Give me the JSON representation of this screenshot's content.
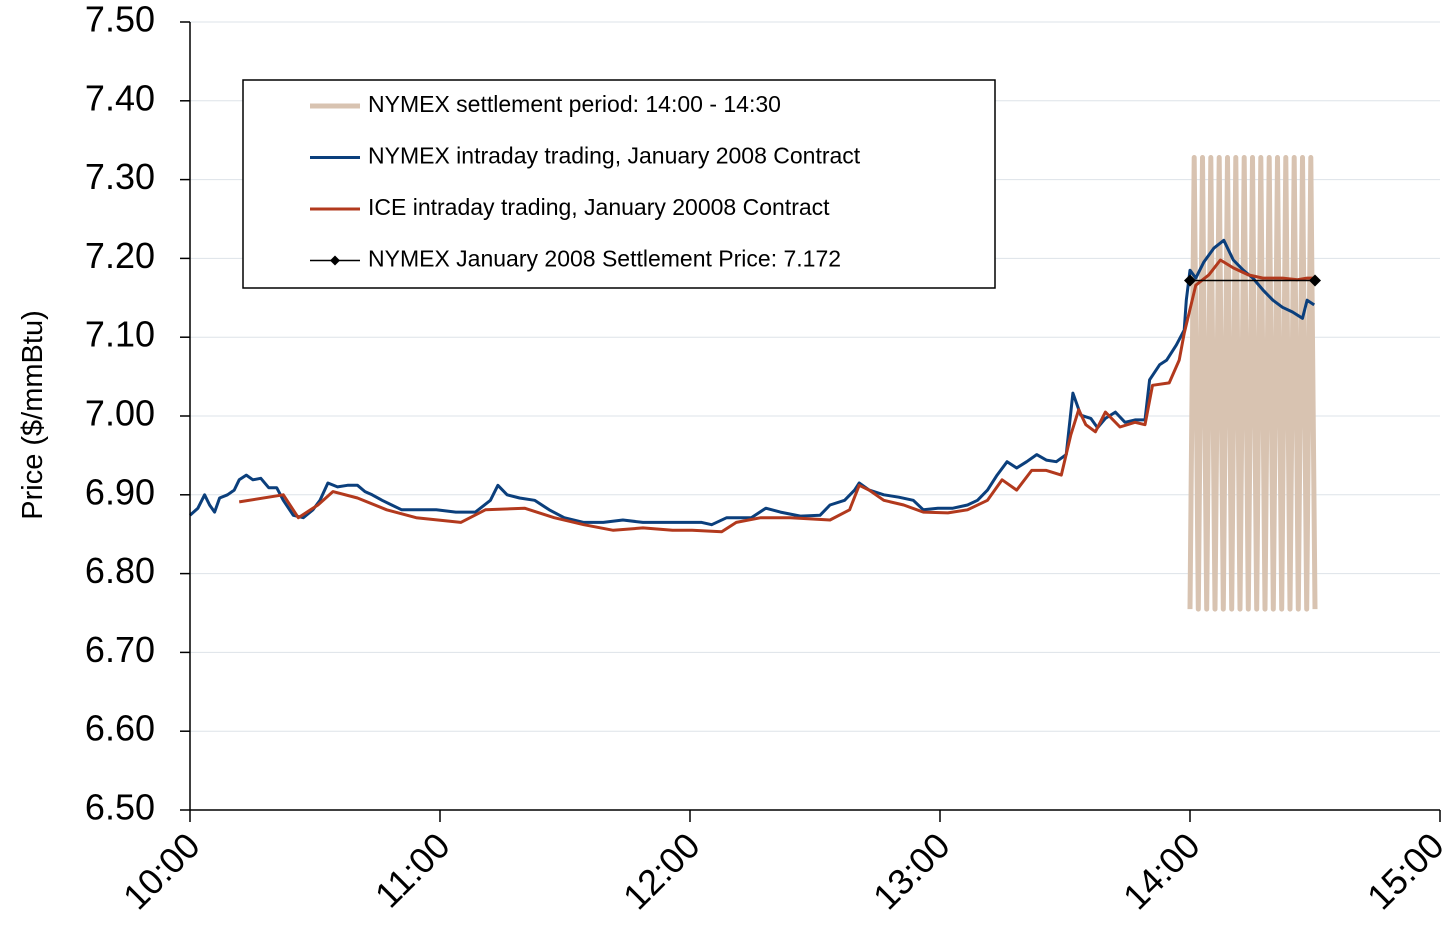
{
  "chart_data": {
    "type": "line",
    "y_label": "Price ($/mmBtu)",
    "xlim": [
      600,
      900
    ],
    "xticks": [
      {
        "value": 600,
        "label": "10:00"
      },
      {
        "value": 660,
        "label": "11:00"
      },
      {
        "value": 720,
        "label": "12:00"
      },
      {
        "value": 780,
        "label": "13:00"
      },
      {
        "value": 840,
        "label": "14:00"
      },
      {
        "value": 900,
        "label": "15:00"
      }
    ],
    "ylim": [
      6.5,
      7.5
    ],
    "yticks": [
      {
        "value": 6.5,
        "label": "6.50"
      },
      {
        "value": 6.6,
        "label": "6.60"
      },
      {
        "value": 6.7,
        "label": "6.70"
      },
      {
        "value": 6.8,
        "label": "6.80"
      },
      {
        "value": 6.9,
        "label": "6.90"
      },
      {
        "value": 7.0,
        "label": "7.00"
      },
      {
        "value": 7.1,
        "label": "7.10"
      },
      {
        "value": 7.2,
        "label": "7.20"
      },
      {
        "value": 7.3,
        "label": "7.30"
      },
      {
        "value": 7.4,
        "label": "7.40"
      },
      {
        "value": 7.5,
        "label": "7.50"
      }
    ],
    "grid": true,
    "series": [
      {
        "name": "NYMEX settlement period: 14:00 - 14:30",
        "color": "#d8c3b1",
        "width": 5,
        "x": [
          840,
          841,
          842,
          843,
          844,
          845,
          846,
          847,
          848,
          849,
          850,
          851,
          852,
          853,
          854,
          855,
          856,
          857,
          858,
          859,
          860,
          861,
          862,
          863,
          864,
          865,
          866,
          867,
          868,
          869,
          870
        ],
        "values": [
          6.755,
          7.328,
          6.755,
          7.328,
          6.755,
          7.328,
          6.755,
          7.328,
          6.755,
          7.328,
          6.755,
          7.328,
          6.755,
          7.328,
          6.755,
          7.328,
          6.755,
          7.328,
          6.755,
          7.328,
          6.755,
          7.328,
          6.755,
          7.328,
          6.755,
          7.328,
          6.755,
          7.328,
          6.755,
          7.328,
          6.755
        ]
      },
      {
        "name": "NYMEX intraday trading, January 2008 Contract",
        "color": "#0b3f7c",
        "width": 3,
        "x": [
          600,
          601.9,
          603.5,
          604.7,
          605.9,
          607.1,
          609,
          610.6,
          611.8,
          613.5,
          615.1,
          617,
          618.9,
          620.8,
          622.4,
          624.8,
          627.2,
          629.5,
          631.2,
          633.1,
          635.4,
          637.8,
          640.2,
          642,
          643.7,
          646.1,
          648.4,
          650.8,
          654.3,
          659.1,
          663.8,
          668.5,
          672.1,
          673.9,
          676.1,
          679.1,
          682.7,
          686.2,
          689.8,
          694.5,
          699.2,
          703.9,
          708.7,
          713.4,
          718.1,
          722.8,
          725.2,
          728.8,
          734.7,
          738.2,
          741.7,
          746.5,
          751.2,
          753.6,
          757.1,
          759.5,
          760.6,
          763,
          766.5,
          770.1,
          773.6,
          776,
          779.5,
          783.1,
          786.6,
          789,
          791.4,
          793.7,
          796.1,
          798.4,
          800.8,
          803.2,
          805.5,
          807.9,
          810.3,
          811.9,
          813.8,
          816.2,
          817.8,
          819.7,
          822.1,
          824.4,
          826.8,
          829.2,
          830.3,
          832.7,
          834.4,
          836.7,
          838.6,
          839.1,
          840,
          841.4,
          843.3,
          845.7,
          848.1,
          850.4,
          852.8,
          855.1,
          857.5,
          859.9,
          862.2,
          864.6,
          867,
          868.1,
          869.8
        ],
        "values": [
          6.874,
          6.883,
          6.9,
          6.887,
          6.878,
          6.896,
          6.9,
          6.906,
          6.919,
          6.925,
          6.919,
          6.921,
          6.909,
          6.909,
          6.893,
          6.874,
          6.871,
          6.881,
          6.893,
          6.915,
          6.91,
          6.912,
          6.912,
          6.904,
          6.9,
          6.893,
          6.887,
          6.881,
          6.881,
          6.881,
          6.878,
          6.878,
          6.893,
          6.912,
          6.9,
          6.896,
          6.893,
          6.881,
          6.871,
          6.865,
          6.865,
          6.868,
          6.865,
          6.865,
          6.865,
          6.865,
          6.862,
          6.871,
          6.871,
          6.883,
          6.878,
          6.873,
          6.874,
          6.887,
          6.893,
          6.906,
          6.915,
          6.906,
          6.9,
          6.897,
          6.893,
          6.881,
          6.883,
          6.883,
          6.887,
          6.893,
          6.906,
          6.925,
          6.942,
          6.934,
          6.942,
          6.951,
          6.944,
          6.942,
          6.951,
          7.029,
          7.001,
          6.997,
          6.985,
          6.997,
          7.005,
          6.992,
          6.995,
          6.995,
          7.046,
          7.065,
          7.071,
          7.09,
          7.109,
          7.147,
          7.185,
          7.175,
          7.195,
          7.213,
          7.223,
          7.198,
          7.185,
          7.175,
          7.16,
          7.147,
          7.138,
          7.132,
          7.124,
          7.147,
          7.141
        ]
      },
      {
        "name": "ICE intraday trading, January 20008 Contract",
        "color": "#b2391d",
        "width": 3,
        "x": [
          611.8,
          622.4,
          626,
          630.7,
          634.3,
          640.2,
          647.2,
          654.3,
          665,
          670.9,
          680.3,
          687.4,
          694.5,
          701.6,
          708.7,
          715.8,
          720.5,
          727.6,
          731.1,
          737,
          744.1,
          753.6,
          758.3,
          760.6,
          763,
          766.5,
          771.3,
          776,
          781.9,
          786.6,
          791.4,
          794.9,
          798.4,
          802,
          805.5,
          809.1,
          811.4,
          813.3,
          815,
          817.3,
          819.7,
          823.2,
          826.8,
          829.2,
          831,
          835,
          837.4,
          838.6,
          841.4,
          844.5,
          847.3,
          850.4,
          854,
          857.5,
          862.2,
          865.8,
          868.1,
          869.8
        ],
        "values": [
          6.891,
          6.9,
          6.871,
          6.887,
          6.904,
          6.896,
          6.881,
          6.871,
          6.865,
          6.881,
          6.883,
          6.871,
          6.862,
          6.855,
          6.858,
          6.855,
          6.855,
          6.853,
          6.865,
          6.871,
          6.871,
          6.868,
          6.881,
          6.912,
          6.906,
          6.893,
          6.887,
          6.878,
          6.877,
          6.881,
          6.893,
          6.919,
          6.906,
          6.931,
          6.931,
          6.925,
          6.976,
          7.008,
          6.989,
          6.98,
          7.005,
          6.986,
          6.992,
          6.989,
          7.039,
          7.042,
          7.071,
          7.105,
          7.166,
          7.179,
          7.198,
          7.188,
          7.179,
          7.175,
          7.175,
          7.173,
          7.175,
          7.175
        ]
      },
      {
        "name": "NYMEX January 2008 Settlement Price: 7.172",
        "color": "#000000",
        "width": 1.5,
        "marker": "diamond",
        "x": [
          840,
          870
        ],
        "values": [
          7.172,
          7.172
        ]
      }
    ]
  }
}
